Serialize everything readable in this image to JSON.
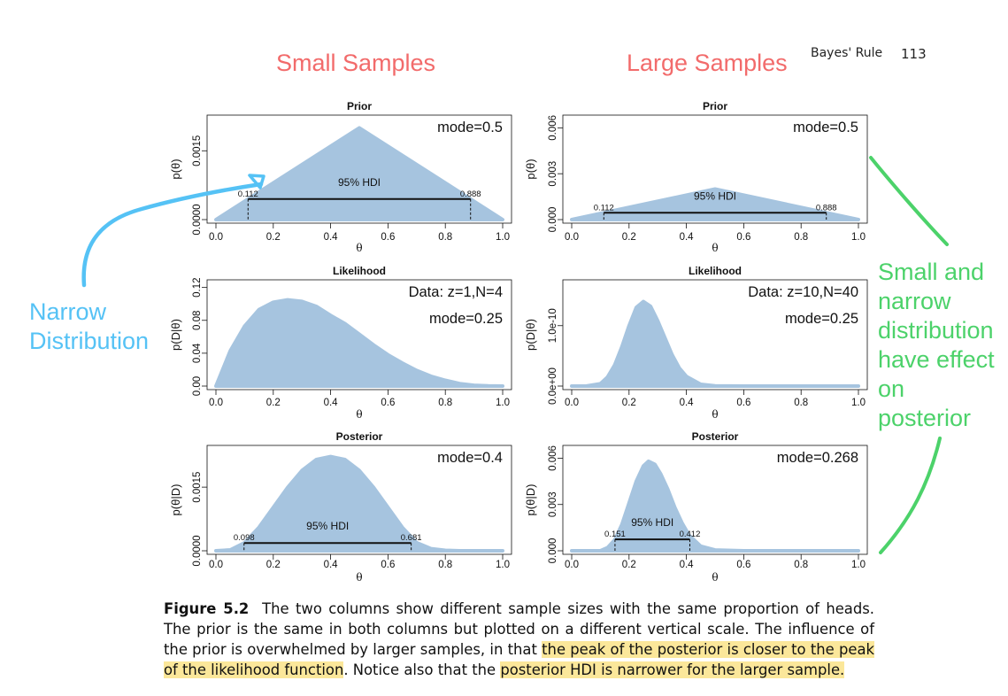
{
  "header": {
    "section": "Bayes' Rule",
    "page_number": "113"
  },
  "column_titles": {
    "left": "Small Samples",
    "right": "Large Samples"
  },
  "annotations": {
    "left": "Narrow\nDistribution",
    "right": "Small and\nnarrow\ndistribution\nhave effect\non\nposterior",
    "arrow_color_left": "#55c2f5",
    "arrow_color_right": "#4cd26a"
  },
  "colors": {
    "fill": "#a6c4df",
    "title": "#f26b6b",
    "highlight": "#fbe79a"
  },
  "caption": {
    "label": "Figure 5.2",
    "text_1": "The two columns show different sample sizes with the same proportion of heads. The prior is the same in both columns but plotted on a different vertical scale. The influence of the prior is overwhelmed by larger samples, in that ",
    "highlight_1": "the peak of the posterior is closer to the peak of the likelihood function",
    "text_2": ". Notice also that the ",
    "highlight_2": "posterior HDI is narrower for the larger sample."
  },
  "chart_data": [
    {
      "id": "prior-small",
      "type": "area",
      "title": "Prior",
      "xlabel": "θ",
      "ylabel": "p(θ)",
      "xlim": [
        0,
        1
      ],
      "ylim": [
        0,
        0.0022
      ],
      "xticks": [
        0.0,
        0.2,
        0.4,
        0.6,
        0.8,
        1.0
      ],
      "xtick_labels": [
        "0.0",
        "0.2",
        "0.4",
        "0.6",
        "0.8",
        "1.0"
      ],
      "yticks": [
        0,
        0.0015
      ],
      "ytick_labels": [
        "0.0000",
        "0.0015"
      ],
      "x": [
        0,
        0.5,
        1
      ],
      "y": [
        0,
        0.002,
        0
      ],
      "annotations": [
        "mode=0.5"
      ],
      "hdi": {
        "label": "95% HDI",
        "low": 0.112,
        "high": 0.888,
        "low_label": "0.112",
        "high_label": "0.888"
      }
    },
    {
      "id": "prior-large",
      "type": "area",
      "title": "Prior",
      "xlabel": "θ",
      "ylabel": "p(θ)",
      "xlim": [
        0,
        1
      ],
      "ylim": [
        0,
        0.0066
      ],
      "xticks": [
        0.0,
        0.2,
        0.4,
        0.6,
        0.8,
        1.0
      ],
      "xtick_labels": [
        "0.0",
        "0.2",
        "0.4",
        "0.6",
        "0.8",
        "1.0"
      ],
      "yticks": [
        0,
        0.003,
        0.006
      ],
      "ytick_labels": [
        "0.000",
        "0.003",
        "0.006"
      ],
      "x": [
        0,
        0.5,
        1
      ],
      "y": [
        0,
        0.002,
        0
      ],
      "annotations": [
        "mode=0.5"
      ],
      "hdi": {
        "label": "95% HDI",
        "low": 0.112,
        "high": 0.888,
        "low_label": "0.112",
        "high_label": "0.888"
      }
    },
    {
      "id": "likelihood-small",
      "type": "area",
      "title": "Likelihood",
      "xlabel": "θ",
      "ylabel": "p(D|θ)",
      "xlim": [
        0,
        1
      ],
      "ylim": [
        0,
        0.125
      ],
      "xticks": [
        0.0,
        0.2,
        0.4,
        0.6,
        0.8,
        1.0
      ],
      "xtick_labels": [
        "0.0",
        "0.2",
        "0.4",
        "0.6",
        "0.8",
        "1.0"
      ],
      "yticks": [
        0,
        0.04,
        0.08,
        0.12
      ],
      "ytick_labels": [
        "0.00",
        "0.04",
        "0.08",
        "0.12"
      ],
      "x": [
        0,
        0.05,
        0.1,
        0.15,
        0.2,
        0.25,
        0.3,
        0.35,
        0.4,
        0.45,
        0.5,
        0.55,
        0.6,
        0.65,
        0.7,
        0.75,
        0.8,
        0.85,
        0.9,
        0.95,
        1
      ],
      "y": [
        0,
        0.043,
        0.073,
        0.093,
        0.102,
        0.105,
        0.103,
        0.097,
        0.086,
        0.076,
        0.063,
        0.05,
        0.038,
        0.028,
        0.019,
        0.012,
        0.007,
        0.003,
        0.001,
        0.0002,
        0
      ],
      "annotations": [
        "Data: z=1,N=4",
        "mode=0.25"
      ]
    },
    {
      "id": "likelihood-large",
      "type": "area",
      "title": "Likelihood",
      "xlabel": "θ",
      "ylabel": "p(D|θ)",
      "xlim": [
        0,
        1
      ],
      "ylim": [
        0,
        1.7e-10
      ],
      "xticks": [
        0.0,
        0.2,
        0.4,
        0.6,
        0.8,
        1.0
      ],
      "xtick_labels": [
        "0.0",
        "0.2",
        "0.4",
        "0.6",
        "0.8",
        "1.0"
      ],
      "yticks": [
        0,
        1e-10
      ],
      "ytick_labels": [
        "0.0e+00",
        "1.0e-10"
      ],
      "x": [
        0,
        0.05,
        0.1,
        0.125,
        0.15,
        0.175,
        0.2,
        0.225,
        0.25,
        0.275,
        0.3,
        0.325,
        0.35,
        0.375,
        0.4,
        0.45,
        0.5,
        0.6,
        1
      ],
      "y": [
        0,
        0,
        4e-12,
        1.5e-11,
        3.5e-11,
        6.5e-11,
        1e-10,
        1.3e-10,
        1.4e-10,
        1.32e-10,
        1.08e-10,
        8e-11,
        5.2e-11,
        3e-11,
        1.6e-11,
        3e-12,
        4e-13,
        0,
        0
      ],
      "annotations": [
        "Data: z=10,N=40",
        "mode=0.25"
      ]
    },
    {
      "id": "posterior-small",
      "type": "area",
      "title": "Posterior",
      "xlabel": "θ",
      "ylabel": "p(θ|D)",
      "xlim": [
        0,
        1
      ],
      "ylim": [
        0,
        0.0024
      ],
      "xticks": [
        0.0,
        0.2,
        0.4,
        0.6,
        0.8,
        1.0
      ],
      "xtick_labels": [
        "0.0",
        "0.2",
        "0.4",
        "0.6",
        "0.8",
        "1.0"
      ],
      "yticks": [
        0,
        0.0015
      ],
      "ytick_labels": [
        "0.0000",
        "0.0015"
      ],
      "x": [
        0,
        0.05,
        0.1,
        0.15,
        0.2,
        0.25,
        0.3,
        0.35,
        0.4,
        0.45,
        0.5,
        0.55,
        0.6,
        0.65,
        0.7,
        0.75,
        0.8,
        0.85,
        0.9,
        0.95,
        1
      ],
      "y": [
        0,
        2e-05,
        0.00019,
        0.00055,
        0.00102,
        0.00149,
        0.00189,
        0.00215,
        0.00222,
        0.00215,
        0.00189,
        0.00149,
        0.00102,
        0.00055,
        0.00019,
        5e-05,
        1e-05,
        0,
        0,
        0,
        0
      ],
      "annotations": [
        "mode=0.4"
      ],
      "hdi": {
        "label": "95% HDI",
        "low": 0.098,
        "high": 0.681,
        "low_label": "0.098",
        "high_label": "0.681"
      }
    },
    {
      "id": "posterior-large",
      "type": "area",
      "title": "Posterior",
      "xlabel": "θ",
      "ylabel": "p(θ|D)",
      "xlim": [
        0,
        1
      ],
      "ylim": [
        0,
        0.0066
      ],
      "xticks": [
        0.0,
        0.2,
        0.4,
        0.6,
        0.8,
        1.0
      ],
      "xtick_labels": [
        "0.0",
        "0.2",
        "0.4",
        "0.6",
        "0.8",
        "1.0"
      ],
      "yticks": [
        0,
        0.003,
        0.006
      ],
      "ytick_labels": [
        "0.000",
        "0.003",
        "0.006"
      ],
      "x": [
        0,
        0.1,
        0.125,
        0.15,
        0.175,
        0.2,
        0.225,
        0.25,
        0.268,
        0.29,
        0.31,
        0.335,
        0.36,
        0.385,
        0.41,
        0.45,
        0.5,
        0.6,
        1
      ],
      "y": [
        0,
        0,
        0.0002,
        0.0007,
        0.0017,
        0.0031,
        0.0045,
        0.0055,
        0.0058,
        0.0056,
        0.005,
        0.004,
        0.0028,
        0.0018,
        0.001,
        0.0003,
        5e-05,
        0,
        0
      ],
      "annotations": [
        "mode=0.268"
      ],
      "hdi": {
        "label": "95% HDI",
        "low": 0.151,
        "high": 0.412,
        "low_label": "0.151",
        "high_label": "0.412"
      }
    }
  ]
}
